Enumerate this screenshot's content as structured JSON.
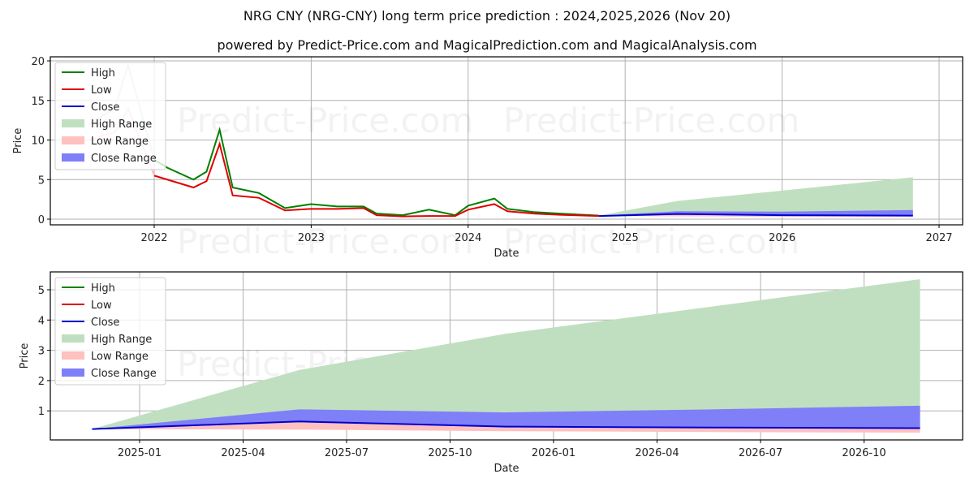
{
  "title": "NRG CNY (NRG-CNY) long term price prediction : 2024,2025,2026 (Nov 20)",
  "subtitle": "powered by Predict-Price.com and MagicalPrediction.com and MagicalAnalysis.com",
  "watermark": "Predict-Price.com",
  "colors": {
    "high": "#008000",
    "low": "#e00000",
    "close": "#0000cc",
    "high_range": "#c0dfc0",
    "low_range": "#ffc0c0",
    "close_range": "#7f7ff8",
    "grid": "#b0b0b0"
  },
  "legend": [
    "High",
    "Low",
    "Close",
    "High Range",
    "Low Range",
    "Close Range"
  ],
  "chart_data": [
    {
      "type": "line",
      "title": "Historical and predicted price (long term)",
      "xlabel": "Date",
      "ylabel": "Price",
      "ylim": [
        0,
        20
      ],
      "yticks": [
        0,
        5,
        10,
        15,
        20
      ],
      "xticks": [
        "2022",
        "2023",
        "2024",
        "2025",
        "2026",
        "2027"
      ],
      "grid": true,
      "legend_position": "upper left",
      "x": [
        "2021-08",
        "2021-10",
        "2021-11",
        "2022-01",
        "2022-02",
        "2022-04",
        "2022-05",
        "2022-06",
        "2022-07",
        "2022-09",
        "2022-11",
        "2023-01",
        "2023-03",
        "2023-05",
        "2023-06",
        "2023-08",
        "2023-10",
        "2023-12",
        "2024-01",
        "2024-03",
        "2024-04",
        "2024-06",
        "2024-08",
        "2024-11"
      ],
      "series": [
        {
          "name": "High",
          "values": [
            12.0,
            14.0,
            19.5,
            7.5,
            6.5,
            5.0,
            6.0,
            11.3,
            4.0,
            3.3,
            1.4,
            1.9,
            1.6,
            1.6,
            0.7,
            0.5,
            1.2,
            0.5,
            1.7,
            2.6,
            1.3,
            0.9,
            0.7,
            0.45
          ]
        },
        {
          "name": "Low",
          "values": [
            10.0,
            11.0,
            14.0,
            5.5,
            5.0,
            4.0,
            4.8,
            9.5,
            3.0,
            2.7,
            1.1,
            1.3,
            1.3,
            1.4,
            0.5,
            0.35,
            0.4,
            0.4,
            1.2,
            1.9,
            1.0,
            0.7,
            0.55,
            0.4
          ]
        }
      ],
      "forecast": {
        "x": [
          "2024-11",
          "2025-05",
          "2026-01",
          "2026-11"
        ],
        "high_range_upper": [
          0.45,
          2.3,
          3.6,
          5.3
        ],
        "close_range_upper": [
          0.45,
          1.0,
          0.95,
          1.15
        ],
        "close": [
          0.4,
          0.65,
          0.5,
          0.45
        ],
        "low_range_lower": [
          0.4,
          0.35,
          0.3,
          0.3
        ]
      }
    },
    {
      "type": "area",
      "title": "Prediction detail",
      "xlabel": "Date",
      "ylabel": "Price",
      "ylim": [
        0,
        5.5
      ],
      "yticks": [
        1,
        2,
        3,
        4,
        5
      ],
      "xticks": [
        "2025-01",
        "2025-04",
        "2025-07",
        "2025-10",
        "2026-01",
        "2026-04",
        "2026-07",
        "2026-10"
      ],
      "grid": true,
      "legend_position": "upper left",
      "x": [
        "2024-11-20",
        "2025-05-20",
        "2025-11-20",
        "2026-05-20",
        "2026-11-20"
      ],
      "series": [
        {
          "name": "High Range (upper)",
          "values": [
            0.4,
            2.35,
            3.55,
            4.45,
            5.35
          ]
        },
        {
          "name": "Close Range (upper)",
          "values": [
            0.4,
            1.05,
            0.95,
            1.05,
            1.17
          ]
        },
        {
          "name": "Close",
          "values": [
            0.4,
            0.65,
            0.48,
            0.45,
            0.43
          ]
        },
        {
          "name": "Low Range (lower)",
          "values": [
            0.4,
            0.38,
            0.33,
            0.3,
            0.28
          ]
        }
      ]
    }
  ]
}
